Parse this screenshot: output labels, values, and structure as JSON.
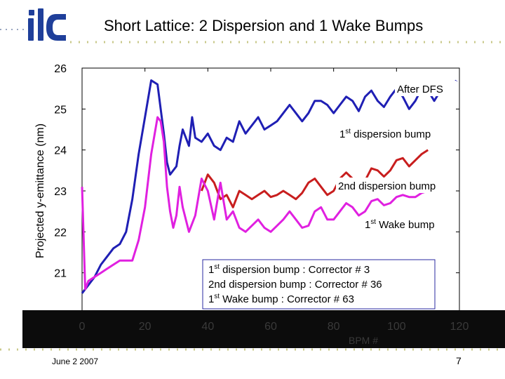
{
  "slide": {
    "title": "Short Lattice: 2 Dispersion and 1 Wake Bumps",
    "date": "June 2 2007",
    "page": "7",
    "accent": "#1f3f9a"
  },
  "chart_data": {
    "type": "line",
    "xlabel": "BPM #",
    "ylabel": "Projected y-emittance (nm)",
    "xlim": [
      0,
      120
    ],
    "ylim": [
      20,
      26
    ],
    "xticks": [
      "0",
      "20",
      "40",
      "60",
      "80",
      "100",
      "120"
    ],
    "yticks": [
      "20",
      "21",
      "22",
      "23",
      "24",
      "25",
      "26"
    ],
    "grid": false,
    "series": [
      {
        "name": "After DFS",
        "color": "#1f1fb4",
        "x": [
          0,
          2,
          4,
          6,
          8,
          10,
          12,
          14,
          16,
          18,
          20,
          22,
          24,
          25,
          26,
          27,
          28,
          30,
          31,
          32,
          34,
          35,
          36,
          38,
          40,
          42,
          44,
          46,
          48,
          50,
          52,
          54,
          56,
          58,
          60,
          62,
          64,
          66,
          68,
          70,
          72,
          74,
          76,
          78,
          80,
          82,
          84,
          86,
          88,
          90,
          92,
          94,
          96,
          98,
          100,
          102,
          104,
          106,
          108,
          110,
          112,
          114,
          116,
          118,
          119
        ],
        "y": [
          20.5,
          20.7,
          20.9,
          21.2,
          21.4,
          21.6,
          21.7,
          22.0,
          22.8,
          23.9,
          24.8,
          25.7,
          25.6,
          25.0,
          24.4,
          23.7,
          23.4,
          23.6,
          24.1,
          24.5,
          24.1,
          24.8,
          24.3,
          24.2,
          24.4,
          24.1,
          24.0,
          24.3,
          24.2,
          24.7,
          24.4,
          24.6,
          24.8,
          24.5,
          24.6,
          24.7,
          24.9,
          25.1,
          24.9,
          24.7,
          24.9,
          25.2,
          25.2,
          25.1,
          24.9,
          25.1,
          25.3,
          25.2,
          24.95,
          25.3,
          25.45,
          25.2,
          25.05,
          25.3,
          25.5,
          25.3,
          25.0,
          25.2,
          25.5,
          25.45,
          25.2,
          25.45,
          25.6,
          25.55,
          25.7
        ]
      },
      {
        "name": "1st dispersion bump",
        "color": "#c81e1e",
        "x": [
          38,
          40,
          42,
          44,
          46,
          48,
          50,
          52,
          54,
          56,
          58,
          60,
          62,
          64,
          66,
          68,
          70,
          72,
          74,
          76,
          78,
          80,
          82,
          84,
          86,
          88,
          90,
          92,
          94,
          96,
          98,
          100,
          102,
          104,
          106,
          108,
          110
        ],
        "y": [
          23.0,
          23.4,
          23.2,
          22.8,
          22.9,
          22.6,
          23.0,
          22.9,
          22.8,
          22.9,
          23.0,
          22.85,
          22.9,
          23.0,
          22.9,
          22.8,
          22.95,
          23.2,
          23.3,
          23.1,
          22.9,
          23.0,
          23.3,
          23.45,
          23.3,
          23.05,
          23.25,
          23.55,
          23.5,
          23.35,
          23.5,
          23.75,
          23.8,
          23.6,
          23.75,
          23.9,
          24.0
        ]
      },
      {
        "name": "2nd dispersion bump",
        "color": "#c81e1e",
        "x": [],
        "y": []
      },
      {
        "name": "1st Wake bump",
        "color": "#e020e0",
        "x": [
          0,
          1,
          2,
          4,
          6,
          8,
          10,
          12,
          14,
          16,
          18,
          20,
          22,
          24,
          25,
          26,
          27,
          28,
          29,
          30,
          31,
          32,
          34,
          36,
          38,
          40,
          42,
          44,
          46,
          48,
          50,
          52,
          54,
          56,
          58,
          60,
          62,
          64,
          66,
          68,
          70,
          72,
          74,
          76,
          78,
          80,
          82,
          84,
          86,
          88,
          90,
          92,
          94,
          96,
          98,
          100,
          102,
          104,
          106,
          108,
          110
        ],
        "y": [
          23.1,
          20.6,
          20.8,
          20.9,
          21.0,
          21.1,
          21.2,
          21.3,
          21.3,
          21.3,
          21.8,
          22.6,
          23.9,
          24.8,
          24.7,
          24.2,
          23.1,
          22.5,
          22.1,
          22.4,
          23.1,
          22.6,
          22.0,
          22.4,
          23.3,
          23.0,
          22.3,
          23.2,
          22.3,
          22.5,
          22.1,
          22.0,
          22.15,
          22.3,
          22.1,
          22.0,
          22.15,
          22.3,
          22.5,
          22.3,
          22.1,
          22.15,
          22.5,
          22.6,
          22.3,
          22.3,
          22.5,
          22.7,
          22.6,
          22.4,
          22.5,
          22.75,
          22.8,
          22.65,
          22.7,
          22.85,
          22.9,
          22.85,
          22.85,
          22.95,
          23.0
        ]
      }
    ],
    "annotations": [
      {
        "base": "After DFS",
        "sup": ""
      },
      {
        "base": "1",
        "sup": "st",
        "rest": " dispersion bump"
      },
      {
        "base": "2nd dispersion bump",
        "sup": ""
      },
      {
        "base": "1",
        "sup": "st",
        "rest": " Wake bump"
      }
    ],
    "legend_box": [
      {
        "base": "1",
        "sup": "st",
        "rest": " dispersion bump : Corrector # 3"
      },
      {
        "base": "2nd dispersion bump : Corrector # 36",
        "sup": "",
        "rest": ""
      },
      {
        "base": "1",
        "sup": "st",
        "rest": " Wake bump : Corrector # 63"
      }
    ]
  }
}
